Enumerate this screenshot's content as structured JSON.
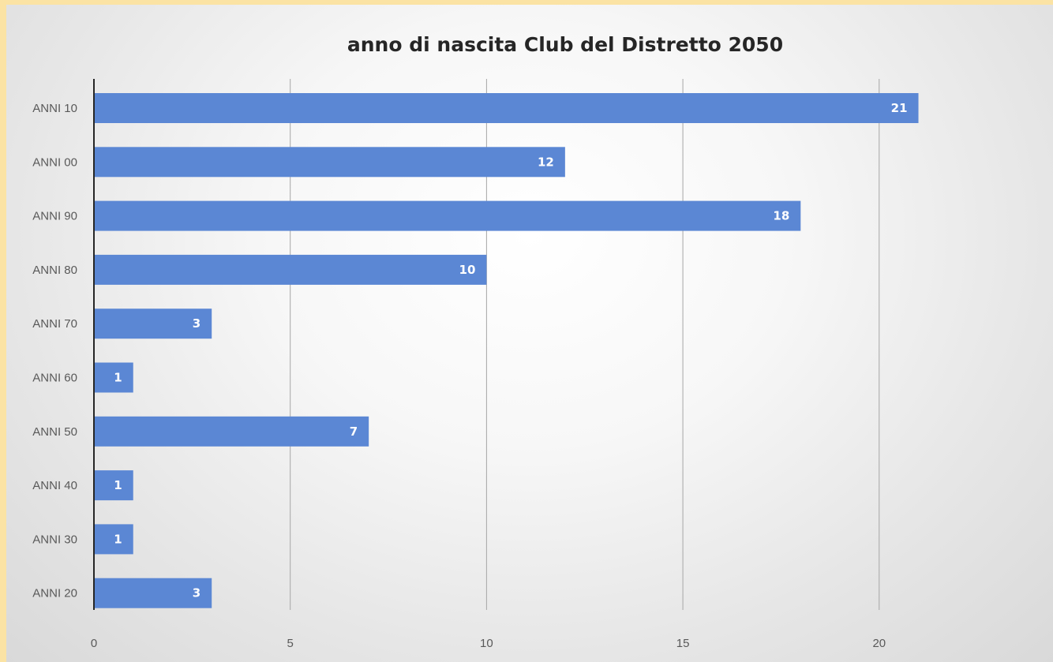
{
  "chart_data": {
    "type": "bar",
    "orientation": "horizontal",
    "title": "anno di nascita Club del Distretto 2050",
    "xlabel": "",
    "ylabel": "",
    "categories": [
      "ANNI 10",
      "ANNI 00",
      "ANNI 90",
      "ANNI 80",
      "ANNI 70",
      "ANNI 60",
      "ANNI 50",
      "ANNI 40",
      "ANNI 30",
      "ANNI 20"
    ],
    "values": [
      21,
      12,
      18,
      10,
      3,
      1,
      7,
      1,
      1,
      3
    ],
    "xlim": [
      0,
      23
    ],
    "xticks": [
      "0",
      "5",
      "10",
      "15",
      "20"
    ],
    "xtick_values": [
      0,
      5,
      10,
      15,
      20
    ],
    "data_labels": true,
    "grid": true,
    "legend": "none",
    "colors": {
      "bar": "#5b87d4",
      "grid": "#a6a6a6",
      "axis": "#262626",
      "page": "#fbe3a4"
    }
  }
}
